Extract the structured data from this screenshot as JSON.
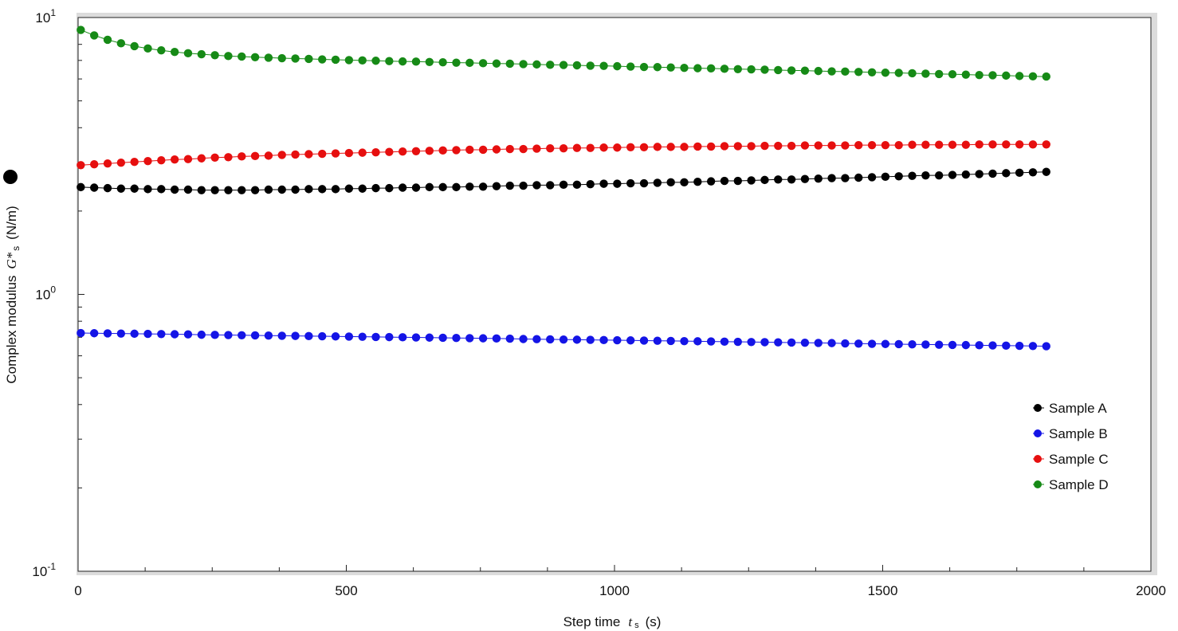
{
  "chart_data": {
    "type": "line",
    "ylabel": {
      "text": "Complex modulus",
      "symbol": "G*",
      "sub": "s",
      "unit": "(N/m)"
    },
    "xlabel": {
      "text": "Step time",
      "symbol": "t",
      "sub": "s",
      "unit": "(s)"
    },
    "log_y": true,
    "xlim": [
      0,
      2000
    ],
    "xticks": [
      0,
      500,
      1000,
      1500,
      2000
    ],
    "xminorticks": [
      125,
      250,
      375,
      625,
      750,
      875,
      1125,
      1250,
      1375,
      1625,
      1750,
      1875
    ],
    "ylim": [
      0.1,
      10
    ],
    "yticks": [
      {
        "value": 10,
        "label": "10",
        "sup": "1"
      },
      {
        "value": 1,
        "label": "10",
        "sup": "0"
      },
      {
        "value": 0.1,
        "label": "10",
        "sup": "-1"
      }
    ],
    "yminorticks": [
      0.2,
      0.3,
      0.4,
      0.5,
      0.6,
      0.7,
      0.8,
      0.9,
      2,
      3,
      4,
      5,
      6,
      7,
      8,
      9
    ],
    "legend_position": "right",
    "x": [
      5,
      30,
      55,
      80,
      105,
      130,
      155,
      180,
      205,
      230,
      255,
      280,
      305,
      330,
      355,
      380,
      405,
      430,
      455,
      480,
      505,
      530,
      555,
      580,
      605,
      630,
      655,
      680,
      705,
      730,
      755,
      780,
      805,
      830,
      855,
      880,
      905,
      930,
      955,
      980,
      1005,
      1030,
      1055,
      1080,
      1105,
      1130,
      1155,
      1180,
      1205,
      1230,
      1255,
      1280,
      1305,
      1330,
      1355,
      1380,
      1405,
      1430,
      1455,
      1480,
      1505,
      1530,
      1555,
      1580,
      1605,
      1630,
      1655,
      1680,
      1705,
      1730,
      1755,
      1780,
      1805
    ],
    "series": [
      {
        "name": "Sample A",
        "color": "#000000",
        "values": [
          2.44,
          2.43,
          2.42,
          2.41,
          2.41,
          2.4,
          2.4,
          2.39,
          2.39,
          2.38,
          2.38,
          2.38,
          2.38,
          2.38,
          2.39,
          2.39,
          2.39,
          2.4,
          2.4,
          2.4,
          2.41,
          2.41,
          2.42,
          2.42,
          2.43,
          2.43,
          2.44,
          2.44,
          2.44,
          2.45,
          2.45,
          2.46,
          2.47,
          2.47,
          2.48,
          2.48,
          2.49,
          2.49,
          2.5,
          2.51,
          2.51,
          2.52,
          2.52,
          2.53,
          2.54,
          2.54,
          2.55,
          2.56,
          2.57,
          2.57,
          2.58,
          2.59,
          2.6,
          2.6,
          2.61,
          2.62,
          2.63,
          2.63,
          2.64,
          2.65,
          2.66,
          2.67,
          2.68,
          2.69,
          2.69,
          2.7,
          2.71,
          2.72,
          2.73,
          2.74,
          2.75,
          2.76,
          2.77
        ]
      },
      {
        "name": "Sample B",
        "color": "#1414e6",
        "values": [
          0.725,
          0.724,
          0.723,
          0.722,
          0.721,
          0.72,
          0.719,
          0.718,
          0.717,
          0.715,
          0.714,
          0.713,
          0.712,
          0.711,
          0.71,
          0.709,
          0.708,
          0.707,
          0.706,
          0.705,
          0.704,
          0.703,
          0.702,
          0.701,
          0.7,
          0.699,
          0.698,
          0.697,
          0.696,
          0.695,
          0.694,
          0.693,
          0.692,
          0.69,
          0.689,
          0.688,
          0.687,
          0.686,
          0.685,
          0.684,
          0.683,
          0.682,
          0.681,
          0.68,
          0.679,
          0.678,
          0.677,
          0.676,
          0.675,
          0.674,
          0.673,
          0.672,
          0.671,
          0.67,
          0.669,
          0.668,
          0.667,
          0.665,
          0.664,
          0.663,
          0.662,
          0.661,
          0.66,
          0.659,
          0.658,
          0.657,
          0.656,
          0.655,
          0.654,
          0.653,
          0.652,
          0.651,
          0.65
        ]
      },
      {
        "name": "Sample C",
        "color": "#e60f0f",
        "values": [
          2.93,
          2.95,
          2.97,
          2.99,
          3.01,
          3.03,
          3.05,
          3.07,
          3.08,
          3.1,
          3.12,
          3.13,
          3.15,
          3.16,
          3.17,
          3.19,
          3.2,
          3.21,
          3.22,
          3.23,
          3.24,
          3.25,
          3.26,
          3.27,
          3.28,
          3.29,
          3.3,
          3.31,
          3.32,
          3.33,
          3.33,
          3.34,
          3.35,
          3.35,
          3.36,
          3.37,
          3.37,
          3.38,
          3.38,
          3.39,
          3.39,
          3.4,
          3.4,
          3.41,
          3.41,
          3.41,
          3.42,
          3.42,
          3.43,
          3.43,
          3.43,
          3.44,
          3.44,
          3.44,
          3.45,
          3.45,
          3.45,
          3.45,
          3.46,
          3.46,
          3.46,
          3.46,
          3.47,
          3.47,
          3.47,
          3.47,
          3.47,
          3.48,
          3.48,
          3.48,
          3.48,
          3.48,
          3.48
        ]
      },
      {
        "name": "Sample D",
        "color": "#168a16",
        "values": [
          9.02,
          8.62,
          8.31,
          8.07,
          7.88,
          7.73,
          7.61,
          7.51,
          7.43,
          7.37,
          7.31,
          7.26,
          7.23,
          7.19,
          7.16,
          7.13,
          7.11,
          7.09,
          7.06,
          7.04,
          7.02,
          7.0,
          6.98,
          6.96,
          6.94,
          6.93,
          6.91,
          6.89,
          6.87,
          6.86,
          6.84,
          6.82,
          6.81,
          6.79,
          6.77,
          6.75,
          6.74,
          6.72,
          6.7,
          6.69,
          6.67,
          6.65,
          6.63,
          6.62,
          6.6,
          6.58,
          6.56,
          6.55,
          6.53,
          6.51,
          6.5,
          6.48,
          6.46,
          6.44,
          6.43,
          6.41,
          6.39,
          6.38,
          6.36,
          6.34,
          6.32,
          6.31,
          6.29,
          6.27,
          6.25,
          6.24,
          6.22,
          6.2,
          6.19,
          6.17,
          6.15,
          6.13,
          6.12
        ]
      }
    ]
  }
}
